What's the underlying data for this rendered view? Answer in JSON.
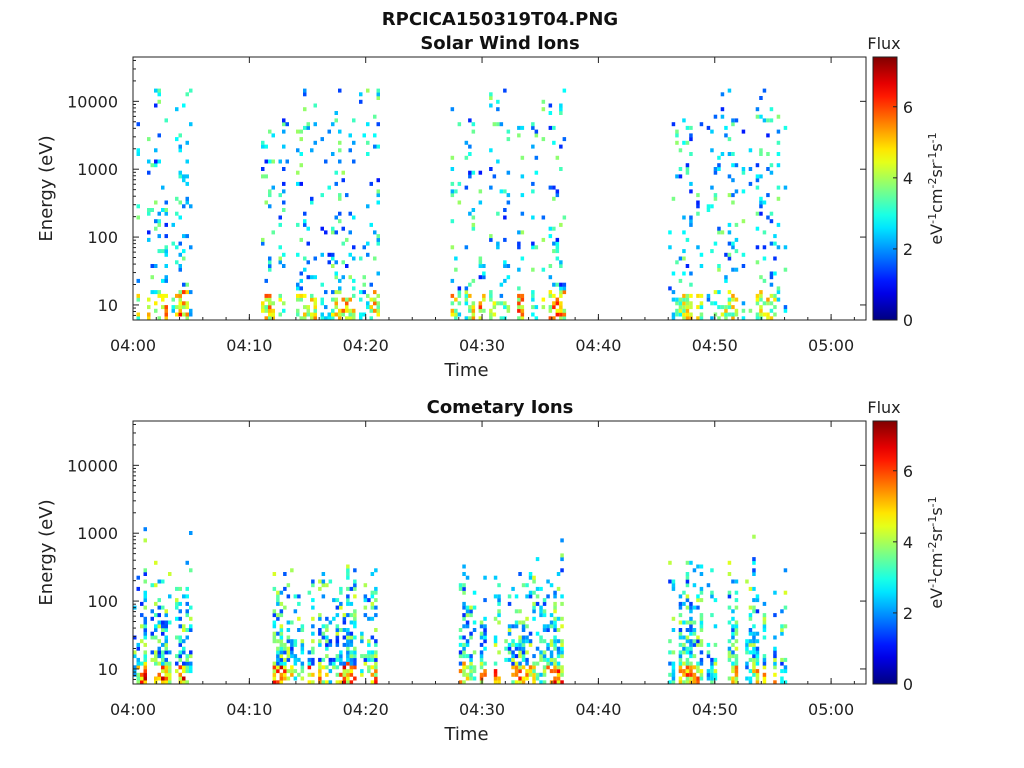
{
  "figure": {
    "title": "RPCICA150319T04.PNG"
  },
  "colormap": "jet",
  "chart_data": [
    {
      "type": "heatmap",
      "title": "Solar Wind Ions",
      "xlabel": "Time",
      "ylabel": "Energy (eV)",
      "y_scale": "log",
      "ylim": [
        6,
        45000
      ],
      "xlim": [
        "04:00",
        "05:03"
      ],
      "x_tick_labels": [
        "04:00",
        "04:10",
        "04:20",
        "04:30",
        "04:40",
        "04:50",
        "05:00"
      ],
      "y_tick_values": [
        10,
        100,
        1000,
        10000
      ],
      "y_tick_labels": [
        "10",
        "100",
        "1000",
        "10000"
      ],
      "colorbar": {
        "label": "Flux",
        "units": "eV-1cm-2sr-1s-1",
        "range": [
          0,
          7.4
        ],
        "tick_labels": [
          "0",
          "2",
          "4",
          "6"
        ]
      },
      "bursts": [
        {
          "start": "04:00",
          "end": "04:05",
          "flux_peak": 6.8
        },
        {
          "start": "04:11",
          "end": "04:21",
          "flux_peak": 6.2
        },
        {
          "start": "04:27",
          "end": "04:37",
          "flux_peak": 6.4
        },
        {
          "start": "04:46",
          "end": "04:56",
          "flux_peak": 5.6
        }
      ]
    },
    {
      "type": "heatmap",
      "title": "Cometary Ions",
      "xlabel": "Time",
      "ylabel": "Energy (eV)",
      "y_scale": "log",
      "ylim": [
        6,
        45000
      ],
      "xlim": [
        "04:00",
        "05:03"
      ],
      "x_tick_labels": [
        "04:00",
        "04:10",
        "04:20",
        "04:30",
        "04:40",
        "04:50",
        "05:00"
      ],
      "y_tick_values": [
        10,
        100,
        1000,
        10000
      ],
      "y_tick_labels": [
        "10",
        "100",
        "1000",
        "10000"
      ],
      "colorbar": {
        "label": "Flux",
        "units": "eV-1cm-2sr-1s-1",
        "range": [
          0,
          7.4
        ],
        "tick_labels": [
          "0",
          "2",
          "4",
          "6"
        ]
      },
      "bursts": [
        {
          "start": "04:00",
          "end": "04:05",
          "flux_peak": 7.2
        },
        {
          "start": "04:12",
          "end": "04:21",
          "flux_peak": 7.0
        },
        {
          "start": "04:28",
          "end": "04:37",
          "flux_peak": 7.0
        },
        {
          "start": "04:46",
          "end": "04:56",
          "flux_peak": 6.6
        }
      ]
    }
  ]
}
